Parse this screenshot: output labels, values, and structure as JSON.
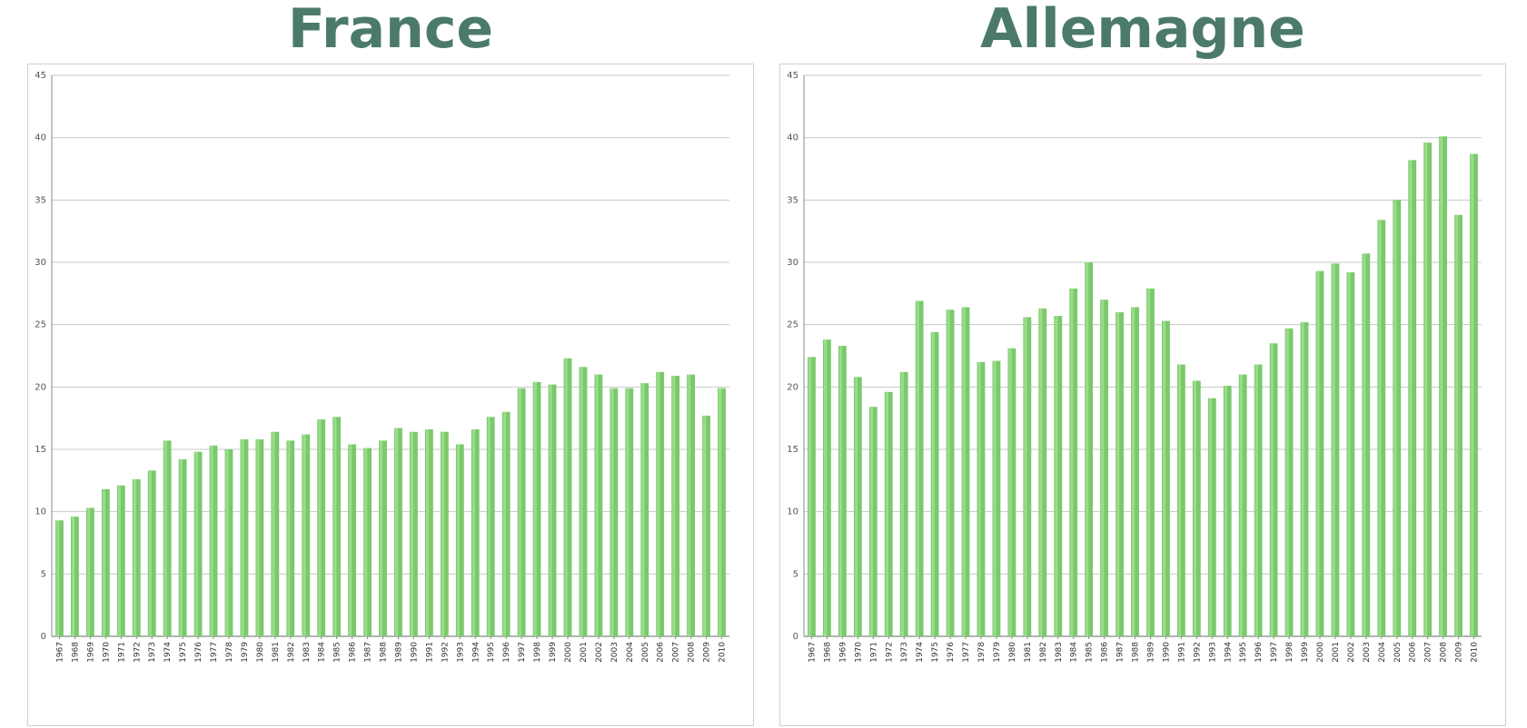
{
  "chart_data": [
    {
      "type": "bar",
      "title": "France",
      "color": "#7ac96b",
      "ylim": [
        0,
        45
      ],
      "yticks": [
        0,
        5,
        10,
        15,
        20,
        25,
        30,
        35,
        40,
        45
      ],
      "grid": true,
      "categories": [
        "1967",
        "1968",
        "1969",
        "1970",
        "1971",
        "1972",
        "1973",
        "1974",
        "1975",
        "1976",
        "1977",
        "1978",
        "1979",
        "1980",
        "1981",
        "1982",
        "1983",
        "1984",
        "1985",
        "1986",
        "1987",
        "1988",
        "1989",
        "1990",
        "1991",
        "1992",
        "1993",
        "1994",
        "1995",
        "1996",
        "1997",
        "1998",
        "1999",
        "2000",
        "2001",
        "2002",
        "2003",
        "2004",
        "2005",
        "2006",
        "2007",
        "2008",
        "2009",
        "2010"
      ],
      "values": [
        9.3,
        9.6,
        10.3,
        11.8,
        12.1,
        12.6,
        13.3,
        15.7,
        14.2,
        14.8,
        15.3,
        15.0,
        15.8,
        15.8,
        16.4,
        15.7,
        16.2,
        17.4,
        17.6,
        15.4,
        15.1,
        15.7,
        16.7,
        16.4,
        16.6,
        16.4,
        15.4,
        16.6,
        17.6,
        18.0,
        19.9,
        20.4,
        20.2,
        22.3,
        21.6,
        21.0,
        19.9,
        19.9,
        20.3,
        21.2,
        20.9,
        21.0,
        17.7,
        19.9
      ]
    },
    {
      "type": "bar",
      "title": "Allemagne",
      "color": "#7ac96b",
      "ylim": [
        0,
        45
      ],
      "yticks": [
        0,
        5,
        10,
        15,
        20,
        25,
        30,
        35,
        40,
        45
      ],
      "grid": true,
      "categories": [
        "1967",
        "1968",
        "1969",
        "1970",
        "1971",
        "1972",
        "1973",
        "1974",
        "1975",
        "1976",
        "1977",
        "1978",
        "1979",
        "1980",
        "1981",
        "1982",
        "1983",
        "1984",
        "1985",
        "1986",
        "1987",
        "1988",
        "1989",
        "1990",
        "1991",
        "1992",
        "1993",
        "1994",
        "1995",
        "1996",
        "1997",
        "1998",
        "1999",
        "2000",
        "2001",
        "2002",
        "2003",
        "2004",
        "2005",
        "2006",
        "2007",
        "2008",
        "2009",
        "2010"
      ],
      "values": [
        22.4,
        23.8,
        23.3,
        20.8,
        18.4,
        19.6,
        21.2,
        26.9,
        24.4,
        26.2,
        26.4,
        22.0,
        22.1,
        23.1,
        25.6,
        26.3,
        25.7,
        27.9,
        30.0,
        27.0,
        26.0,
        26.4,
        27.9,
        25.3,
        21.8,
        20.5,
        19.1,
        20.1,
        21.0,
        21.8,
        23.5,
        24.7,
        25.2,
        29.3,
        29.9,
        29.2,
        30.7,
        33.4,
        35.0,
        38.2,
        39.6,
        40.1,
        33.8,
        38.7
      ]
    }
  ]
}
